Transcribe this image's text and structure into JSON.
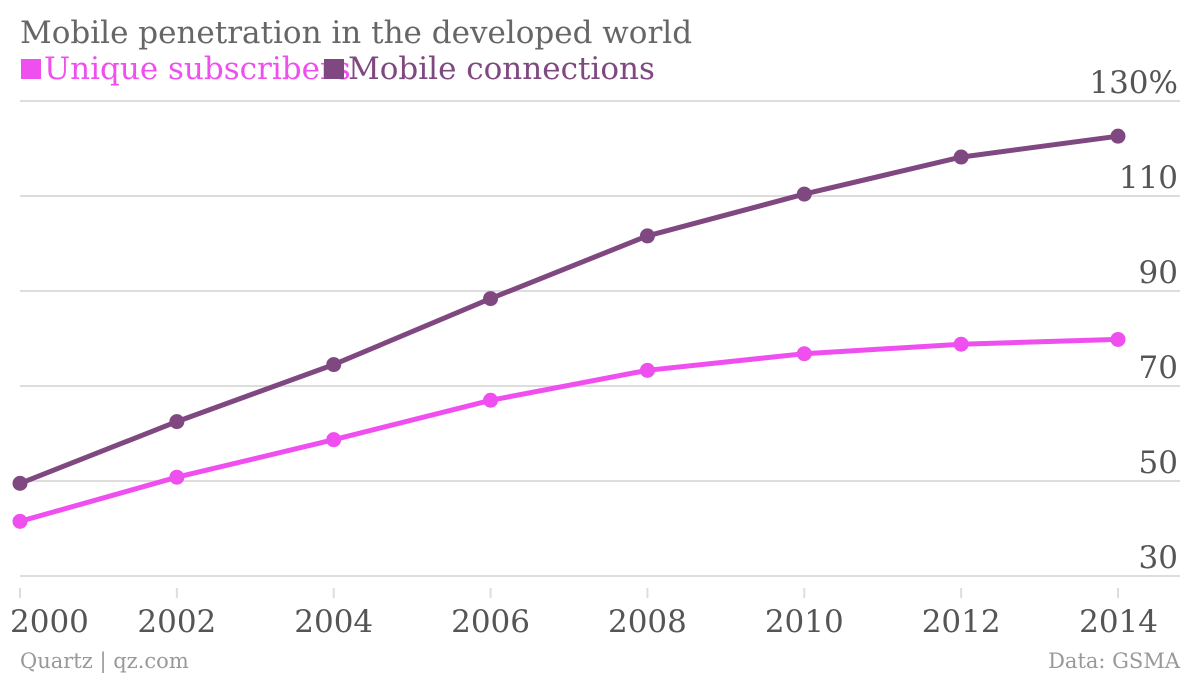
{
  "chart_data": {
    "type": "line",
    "title": "Mobile penetration in the developed world",
    "x": [
      2000,
      2002,
      2004,
      2006,
      2008,
      2010,
      2012,
      2014
    ],
    "series": [
      {
        "name": "Unique subscribers",
        "color": "#ef4fef",
        "values": [
          41.5,
          50.8,
          58.7,
          67.0,
          73.3,
          76.8,
          78.8,
          79.8
        ]
      },
      {
        "name": "Mobile connections",
        "color": "#7f4880",
        "values": [
          49.5,
          62.5,
          74.5,
          88.4,
          101.6,
          110.4,
          118.2,
          122.6
        ]
      }
    ],
    "y_ticks": [
      "130%",
      "110",
      "90",
      "70",
      "50",
      "30"
    ],
    "x_ticks": [
      "2000",
      "2002",
      "2004",
      "2006",
      "2008",
      "2010",
      "2012",
      "2014"
    ],
    "ylim": [
      30,
      130
    ],
    "xlim": [
      2000,
      2014
    ],
    "grid": true,
    "legend_position": "top-left"
  },
  "footer": {
    "source_left": "Quartz | qz.com",
    "source_right": "Data: GSMA"
  },
  "colors": {
    "grid": "#dddddd",
    "tick_text": "#555555",
    "title_text": "#666666",
    "footer_text": "#999999"
  }
}
